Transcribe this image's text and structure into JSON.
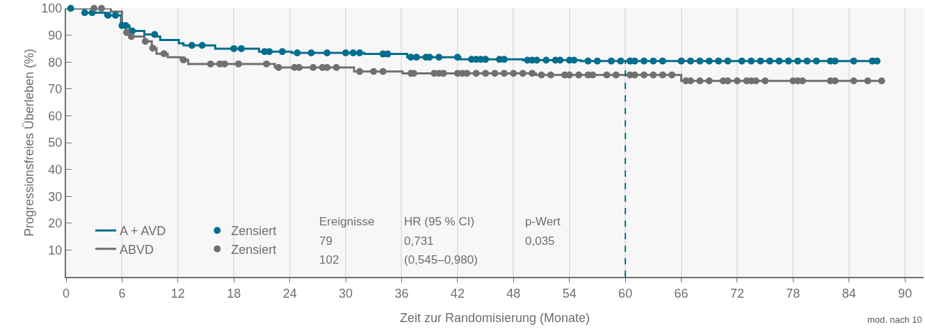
{
  "chart_data": {
    "type": "step",
    "xlabel": "Zeit zur Randomisierung (Monate)",
    "ylabel": "Progressionsfreies Überleben (%)",
    "xlim": [
      0,
      92
    ],
    "xticks": [
      0,
      6,
      12,
      18,
      24,
      30,
      36,
      42,
      48,
      54,
      60,
      66,
      72,
      78,
      84,
      90
    ],
    "ylim": [
      0,
      100
    ],
    "yticks": [
      10,
      20,
      30,
      40,
      50,
      60,
      70,
      80,
      90,
      100
    ],
    "grid": "x",
    "legend": "bottom left",
    "ref_lines": [
      {
        "axis": "x",
        "value": 60,
        "color": "#006e8c",
        "line_style": "dashed"
      }
    ],
    "annotations": [
      "Ereignisse",
      "HR (95 % CI)",
      "p-Wert",
      "79",
      "0,731",
      "0,035",
      "102",
      "(0,545–0,980)",
      "mod. nach 10"
    ],
    "series": [
      {
        "name": "A + AVD",
        "marker": "none",
        "color": "#006e8c",
        "x": [
          0,
          1.9,
          4.2,
          5.9,
          6.8,
          8.4,
          9.7,
          10.1,
          12.1,
          12.6,
          16,
          20.7,
          24.2,
          32,
          36.6,
          42.3,
          49,
          55.2,
          87
        ],
        "values": [
          100,
          98.4,
          97.4,
          93.6,
          91.6,
          90.3,
          89.5,
          88.2,
          87,
          86.2,
          85,
          83.9,
          83.4,
          83,
          81.8,
          81,
          80.7,
          80.4,
          80.4
        ]
      },
      {
        "name": "ABVD",
        "marker": "none",
        "color": "#707070",
        "x": [
          0,
          4.8,
          6,
          6.4,
          6.8,
          8.4,
          9.2,
          9.7,
          10.9,
          12.3,
          13.1,
          22.4,
          30.9,
          36.1,
          50.4,
          66,
          87.5
        ],
        "values": [
          100,
          98.8,
          93.3,
          91,
          89.5,
          87.7,
          85.2,
          83.1,
          81.8,
          80.8,
          79.3,
          78,
          76.5,
          75.8,
          75.2,
          73,
          73
        ]
      },
      {
        "name": "Zensiert",
        "type": "scatter",
        "marker": "circle",
        "color": "#006e8c",
        "x": [
          0.5,
          2,
          2.8,
          4.5,
          5.3,
          6,
          6.4,
          7.1,
          9.5,
          13.5,
          14.6,
          18,
          18.8,
          21.3,
          21.8,
          23.2,
          24.8,
          26.3,
          28,
          30,
          30.8,
          31.5,
          34,
          34.5,
          37,
          37.6,
          38.6,
          39,
          40,
          42,
          43.5,
          44,
          44.5,
          45,
          46.5,
          47,
          49.5,
          50,
          50.5,
          51.5,
          52.5,
          53,
          54,
          54.5,
          56,
          57,
          58.5,
          59.5,
          60.5,
          61,
          62,
          63,
          64,
          66,
          67,
          68,
          69,
          70,
          71,
          72.5,
          73.5,
          74.5,
          75.5,
          76.5,
          77.5,
          78.5,
          79.5,
          80.5,
          82,
          82.5,
          84.5,
          86.5,
          87
        ],
        "values": [
          100,
          98.4,
          98.4,
          97.4,
          97.4,
          93.6,
          93.6,
          91.6,
          90.3,
          86.2,
          86.2,
          85,
          85,
          83.9,
          83.9,
          83.9,
          83.4,
          83.4,
          83.4,
          83.4,
          83.4,
          83.4,
          83,
          83,
          81.8,
          81.8,
          81.8,
          81.8,
          81.8,
          81.8,
          81,
          81,
          81,
          81,
          81,
          81,
          80.7,
          80.7,
          80.7,
          80.7,
          80.7,
          80.7,
          80.7,
          80.7,
          80.4,
          80.4,
          80.4,
          80.4,
          80.4,
          80.4,
          80.4,
          80.4,
          80.4,
          80.4,
          80.4,
          80.4,
          80.4,
          80.4,
          80.4,
          80.4,
          80.4,
          80.4,
          80.4,
          80.4,
          80.4,
          80.4,
          80.4,
          80.4,
          80.4,
          80.4,
          80.4,
          80.4,
          80.4
        ]
      },
      {
        "name": "Zensiert",
        "type": "scatter",
        "marker": "circle",
        "color": "#707070",
        "x": [
          3,
          3.8,
          6.5,
          7,
          8.5,
          9.3,
          10.5,
          12.6,
          15.5,
          16.5,
          17,
          18.5,
          21.5,
          22.8,
          24.5,
          25,
          26.5,
          27.5,
          28,
          29,
          31.5,
          33,
          34,
          37,
          37.3,
          39.5,
          40,
          40.5,
          42,
          42.5,
          43,
          44,
          45,
          46,
          47,
          48,
          49,
          50,
          51,
          52,
          53.5,
          54,
          55,
          56,
          56.5,
          58,
          59,
          60.5,
          61,
          62,
          63,
          64,
          65,
          66.5,
          67,
          68,
          69,
          70.5,
          71,
          72,
          73,
          73.5,
          74,
          75,
          78,
          78.5,
          79,
          82,
          82.5,
          84.5,
          86,
          87.5
        ],
        "values": [
          100,
          100,
          91,
          89.5,
          87.7,
          85.2,
          83.1,
          80.8,
          79.3,
          79.3,
          79.3,
          79.3,
          79.3,
          78,
          78,
          78,
          78,
          78,
          78,
          78,
          76.5,
          76.5,
          76.5,
          75.8,
          75.8,
          75.8,
          75.8,
          75.8,
          75.8,
          75.8,
          75.8,
          75.8,
          75.8,
          75.8,
          75.8,
          75.8,
          75.8,
          75.8,
          75.2,
          75.2,
          75.2,
          75.2,
          75.2,
          75.2,
          75.2,
          75.2,
          75.2,
          75.2,
          75.2,
          75.2,
          75.2,
          75.2,
          75.2,
          73,
          73,
          73,
          73,
          73,
          73,
          73,
          73,
          73,
          73,
          73,
          73,
          73,
          73,
          73,
          73,
          73,
          73,
          73
        ]
      }
    ]
  }
}
